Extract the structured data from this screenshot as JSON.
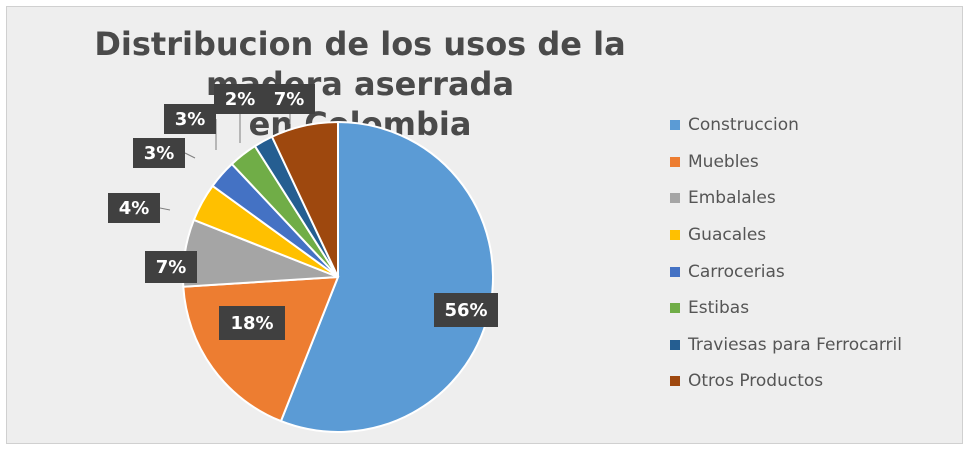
{
  "chart_data": {
    "type": "pie",
    "title": "Distribucion de los usos de la madera aserrada en Colombia",
    "title_lines": [
      "Distribucion de los usos de la madera aserrada",
      "en Colombia"
    ],
    "legend_position": "right",
    "slices": [
      {
        "name": "Construccion",
        "value": 56,
        "label": "56%",
        "color": "#5b9bd5"
      },
      {
        "name": "Muebles",
        "value": 18,
        "label": "18%",
        "color": "#ed7d31"
      },
      {
        "name": "Embalales",
        "value": 7,
        "label": "7%",
        "color": "#a5a5a5"
      },
      {
        "name": "Guacales",
        "value": 4,
        "label": "4%",
        "color": "#ffc000"
      },
      {
        "name": "Carrocerias",
        "value": 3,
        "label": "3%",
        "color": "#4472c4"
      },
      {
        "name": "Estibas",
        "value": 3,
        "label": "3%",
        "color": "#70ad47"
      },
      {
        "name": "Traviesas para Ferrocarril",
        "value": 2,
        "label": "2%",
        "color": "#255e91"
      },
      {
        "name": "Otros Productos",
        "value": 7,
        "label": "7%",
        "color": "#9e480e"
      }
    ]
  }
}
